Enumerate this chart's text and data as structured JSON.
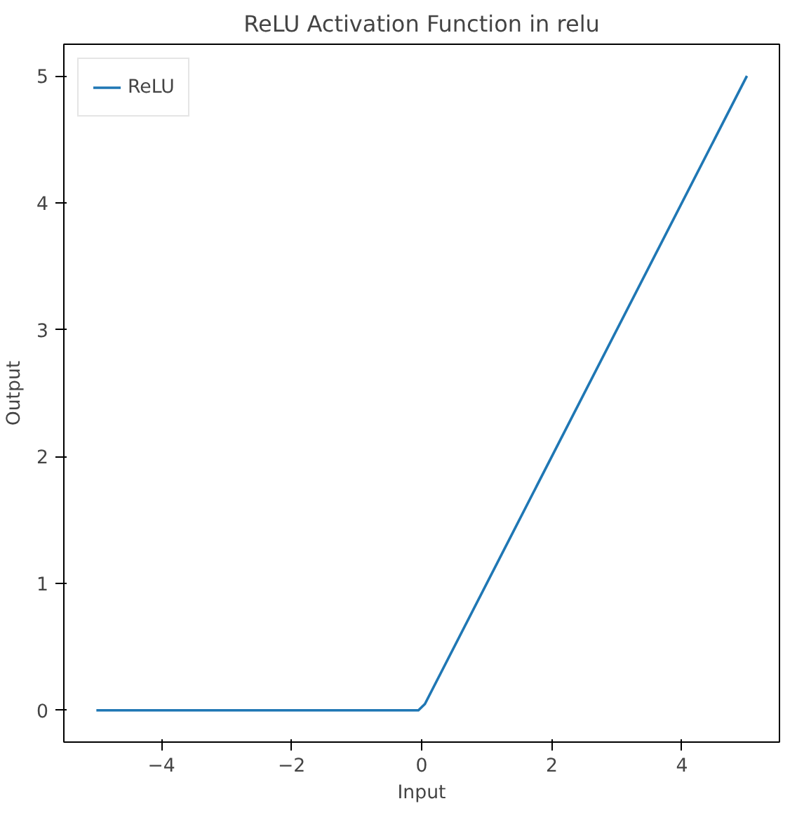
{
  "chart_data": {
    "type": "line",
    "title": "ReLU Activation Function in relu",
    "xlabel": "Input",
    "ylabel": "Output",
    "x": [
      -5,
      -0.05,
      0.05,
      5
    ],
    "series": [
      {
        "name": "ReLU",
        "color": "#1f77b4",
        "values": [
          0,
          0,
          0.05,
          5
        ]
      }
    ],
    "xlim": [
      -5.5,
      5.5
    ],
    "ylim": [
      -0.25,
      5.25
    ],
    "xticks": [
      {
        "value": -4,
        "label": "−4"
      },
      {
        "value": -2,
        "label": "−2"
      },
      0,
      2,
      4
    ],
    "yticks": [
      0,
      1,
      2,
      3,
      4,
      5
    ],
    "grid": false,
    "legend": "top left",
    "line_style": "solid"
  }
}
